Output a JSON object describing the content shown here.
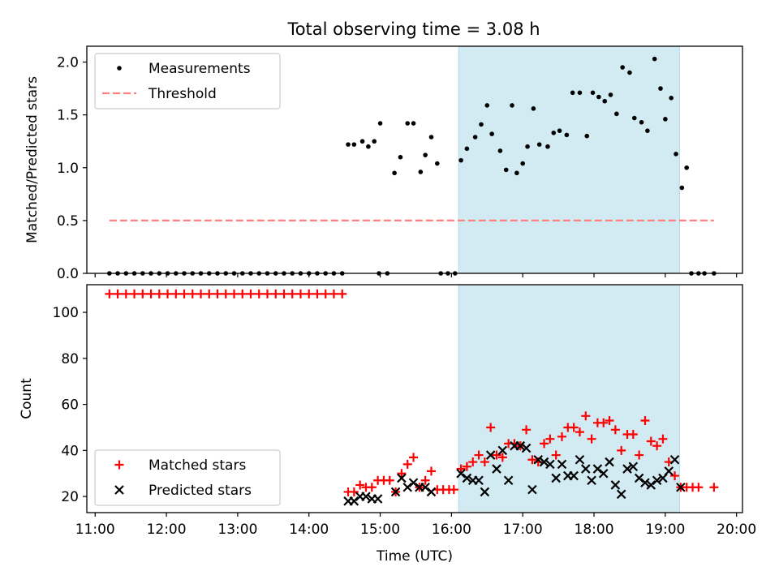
{
  "figure_title": "Total observing time = 3.08 h",
  "chart_data": [
    {
      "type": "scatter",
      "ylabel": "Matched/Predicted stars",
      "xlim": [
        "10:53",
        "20:05"
      ],
      "ylim": [
        0,
        2.15
      ],
      "yticks": [
        "0.0",
        "0.5",
        "1.0",
        "1.5",
        "2.0"
      ],
      "shaded_region": {
        "start": "16:06",
        "end": "19:12",
        "color": "#add8e6"
      },
      "legend": {
        "position": "upper-left",
        "entries": [
          "Measurements",
          "Threshold"
        ]
      },
      "threshold": {
        "name": "Threshold",
        "value": 0.5,
        "x_start": "11:12",
        "x_end": "19:41",
        "color": "#ff8080"
      },
      "series": [
        {
          "name": "Measurements",
          "color": "#000000",
          "points": [
            [
              "11:12",
              0
            ],
            [
              "11:19",
              0
            ],
            [
              "11:26",
              0
            ],
            [
              "11:33",
              0
            ],
            [
              "11:40",
              0
            ],
            [
              "11:47",
              0
            ],
            [
              "11:54",
              0
            ],
            [
              "12:01",
              0
            ],
            [
              "12:08",
              0
            ],
            [
              "12:15",
              0
            ],
            [
              "12:22",
              0
            ],
            [
              "12:29",
              0
            ],
            [
              "12:36",
              0
            ],
            [
              "12:43",
              0
            ],
            [
              "12:50",
              0
            ],
            [
              "12:57",
              0
            ],
            [
              "13:04",
              0
            ],
            [
              "13:11",
              0
            ],
            [
              "13:18",
              0
            ],
            [
              "13:25",
              0
            ],
            [
              "13:32",
              0
            ],
            [
              "13:39",
              0
            ],
            [
              "13:46",
              0
            ],
            [
              "13:53",
              0
            ],
            [
              "14:00",
              0
            ],
            [
              "14:07",
              0
            ],
            [
              "14:14",
              0
            ],
            [
              "14:21",
              0
            ],
            [
              "14:28",
              0
            ],
            [
              "14:33",
              1.22
            ],
            [
              "14:38",
              1.22
            ],
            [
              "14:45",
              1.25
            ],
            [
              "14:50",
              1.2
            ],
            [
              "14:55",
              1.25
            ],
            [
              "15:00",
              1.42
            ],
            [
              "14:59",
              0
            ],
            [
              "15:06",
              0
            ],
            [
              "15:12",
              0.95
            ],
            [
              "15:17",
              1.1
            ],
            [
              "15:23",
              1.42
            ],
            [
              "15:28",
              1.42
            ],
            [
              "15:34",
              0.96
            ],
            [
              "15:38",
              1.12
            ],
            [
              "15:43",
              1.29
            ],
            [
              "15:48",
              1.04
            ],
            [
              "15:51",
              0
            ],
            [
              "15:57",
              0
            ],
            [
              "16:03",
              0
            ],
            [
              "16:08",
              1.07
            ],
            [
              "16:13",
              1.18
            ],
            [
              "16:20",
              1.29
            ],
            [
              "16:25",
              1.41
            ],
            [
              "16:30",
              1.59
            ],
            [
              "16:34",
              1.32
            ],
            [
              "16:41",
              1.16
            ],
            [
              "16:46",
              0.98
            ],
            [
              "16:51",
              1.59
            ],
            [
              "16:55",
              0.95
            ],
            [
              "17:00",
              1.04
            ],
            [
              "17:04",
              1.2
            ],
            [
              "17:09",
              1.56
            ],
            [
              "17:14",
              1.22
            ],
            [
              "17:21",
              1.2
            ],
            [
              "17:26",
              1.33
            ],
            [
              "17:31",
              1.35
            ],
            [
              "17:37",
              1.31
            ],
            [
              "17:42",
              1.71
            ],
            [
              "17:48",
              1.71
            ],
            [
              "17:54",
              1.3
            ],
            [
              "17:59",
              1.71
            ],
            [
              "18:04",
              1.67
            ],
            [
              "18:09",
              1.63
            ],
            [
              "18:14",
              1.69
            ],
            [
              "18:19",
              1.51
            ],
            [
              "18:24",
              1.95
            ],
            [
              "18:30",
              1.9
            ],
            [
              "18:34",
              1.47
            ],
            [
              "18:40",
              1.43
            ],
            [
              "18:45",
              1.35
            ],
            [
              "18:51",
              2.03
            ],
            [
              "18:56",
              1.75
            ],
            [
              "19:00",
              1.46
            ],
            [
              "19:05",
              1.66
            ],
            [
              "19:09",
              1.13
            ],
            [
              "19:14",
              0.81
            ],
            [
              "19:18",
              1.0
            ],
            [
              "19:22",
              0
            ],
            [
              "19:28",
              0
            ],
            [
              "19:33",
              0
            ],
            [
              "19:41",
              0
            ]
          ]
        }
      ]
    },
    {
      "type": "scatter",
      "xlabel": "Time (UTC)",
      "ylabel": "Count",
      "xlim": [
        "10:53",
        "20:05"
      ],
      "ylim": [
        13,
        112
      ],
      "xticks": [
        "11:00",
        "12:00",
        "13:00",
        "14:00",
        "15:00",
        "16:00",
        "17:00",
        "18:00",
        "19:00",
        "20:00"
      ],
      "yticks": [
        "20",
        "40",
        "60",
        "80",
        "100"
      ],
      "shaded_region": {
        "start": "16:06",
        "end": "19:12",
        "color": "#add8e6"
      },
      "legend": {
        "position": "lower-left",
        "entries": [
          "Matched stars",
          "Predicted stars"
        ]
      },
      "series": [
        {
          "name": "Matched stars",
          "marker": "plus",
          "color": "#ff0000",
          "points": [
            [
              "11:12",
              108
            ],
            [
              "11:19",
              108
            ],
            [
              "11:26",
              108
            ],
            [
              "11:33",
              108
            ],
            [
              "11:40",
              108
            ],
            [
              "11:47",
              108
            ],
            [
              "11:54",
              108
            ],
            [
              "12:01",
              108
            ],
            [
              "12:08",
              108
            ],
            [
              "12:15",
              108
            ],
            [
              "12:22",
              108
            ],
            [
              "12:29",
              108
            ],
            [
              "12:36",
              108
            ],
            [
              "12:43",
              108
            ],
            [
              "12:50",
              108
            ],
            [
              "12:57",
              108
            ],
            [
              "13:04",
              108
            ],
            [
              "13:11",
              108
            ],
            [
              "13:18",
              108
            ],
            [
              "13:25",
              108
            ],
            [
              "13:32",
              108
            ],
            [
              "13:39",
              108
            ],
            [
              "13:46",
              108
            ],
            [
              "13:53",
              108
            ],
            [
              "14:00",
              108
            ],
            [
              "14:07",
              108
            ],
            [
              "14:14",
              108
            ],
            [
              "14:21",
              108
            ],
            [
              "14:28",
              108
            ],
            [
              "14:33",
              22
            ],
            [
              "14:38",
              22
            ],
            [
              "14:43",
              25
            ],
            [
              "14:48",
              24
            ],
            [
              "14:53",
              24
            ],
            [
              "14:58",
              27
            ],
            [
              "15:03",
              27
            ],
            [
              "15:08",
              27
            ],
            [
              "15:13",
              22
            ],
            [
              "15:18",
              30
            ],
            [
              "15:23",
              34
            ],
            [
              "15:28",
              37
            ],
            [
              "15:33",
              24
            ],
            [
              "15:38",
              27
            ],
            [
              "15:43",
              31
            ],
            [
              "15:48",
              23
            ],
            [
              "15:53",
              23
            ],
            [
              "15:58",
              23
            ],
            [
              "16:02",
              23
            ],
            [
              "16:08",
              32
            ],
            [
              "16:13",
              33
            ],
            [
              "16:18",
              35
            ],
            [
              "16:23",
              38
            ],
            [
              "16:28",
              35
            ],
            [
              "16:33",
              50
            ],
            [
              "16:38",
              38
            ],
            [
              "16:43",
              37
            ],
            [
              "16:48",
              43
            ],
            [
              "16:53",
              43
            ],
            [
              "16:58",
              42
            ],
            [
              "17:03",
              49
            ],
            [
              "17:08",
              36
            ],
            [
              "17:13",
              35
            ],
            [
              "17:18",
              43
            ],
            [
              "17:23",
              45
            ],
            [
              "17:28",
              38
            ],
            [
              "17:33",
              46
            ],
            [
              "17:38",
              50
            ],
            [
              "17:43",
              50
            ],
            [
              "17:48",
              48
            ],
            [
              "17:53",
              55
            ],
            [
              "17:58",
              45
            ],
            [
              "18:03",
              52
            ],
            [
              "18:08",
              52
            ],
            [
              "18:13",
              53
            ],
            [
              "18:18",
              49
            ],
            [
              "18:23",
              40
            ],
            [
              "18:28",
              47
            ],
            [
              "18:33",
              47
            ],
            [
              "18:38",
              38
            ],
            [
              "18:43",
              53
            ],
            [
              "18:48",
              44
            ],
            [
              "18:53",
              42
            ],
            [
              "18:58",
              45
            ],
            [
              "19:03",
              35
            ],
            [
              "19:08",
              29
            ],
            [
              "19:13",
              24
            ],
            [
              "19:18",
              24
            ],
            [
              "19:23",
              24
            ],
            [
              "19:28",
              24
            ],
            [
              "19:41",
              24
            ]
          ]
        },
        {
          "name": "Predicted stars",
          "marker": "x",
          "color": "#000000",
          "points": [
            [
              "14:33",
              18
            ],
            [
              "14:38",
              18
            ],
            [
              "14:43",
              20
            ],
            [
              "14:48",
              20
            ],
            [
              "14:53",
              19
            ],
            [
              "14:58",
              19
            ],
            [
              "15:13",
              22
            ],
            [
              "15:18",
              28
            ],
            [
              "15:23",
              24
            ],
            [
              "15:28",
              26
            ],
            [
              "15:33",
              24
            ],
            [
              "15:38",
              24
            ],
            [
              "15:43",
              22
            ],
            [
              "16:08",
              30
            ],
            [
              "16:13",
              28
            ],
            [
              "16:18",
              27
            ],
            [
              "16:23",
              27
            ],
            [
              "16:28",
              22
            ],
            [
              "16:33",
              38
            ],
            [
              "16:38",
              32
            ],
            [
              "16:43",
              40
            ],
            [
              "16:48",
              27
            ],
            [
              "16:53",
              42
            ],
            [
              "16:58",
              42
            ],
            [
              "17:03",
              41
            ],
            [
              "17:08",
              23
            ],
            [
              "17:13",
              36
            ],
            [
              "17:18",
              35
            ],
            [
              "17:23",
              34
            ],
            [
              "17:28",
              28
            ],
            [
              "17:33",
              34
            ],
            [
              "17:38",
              29
            ],
            [
              "17:43",
              29
            ],
            [
              "17:48",
              36
            ],
            [
              "17:53",
              32
            ],
            [
              "17:58",
              27
            ],
            [
              "18:03",
              32
            ],
            [
              "18:08",
              30
            ],
            [
              "18:13",
              35
            ],
            [
              "18:18",
              25
            ],
            [
              "18:23",
              21
            ],
            [
              "18:28",
              32
            ],
            [
              "18:33",
              33
            ],
            [
              "18:38",
              28
            ],
            [
              "18:43",
              26
            ],
            [
              "18:48",
              25
            ],
            [
              "18:53",
              27
            ],
            [
              "18:58",
              28
            ],
            [
              "19:03",
              31
            ],
            [
              "19:08",
              36
            ],
            [
              "19:13",
              24
            ]
          ]
        }
      ]
    }
  ]
}
